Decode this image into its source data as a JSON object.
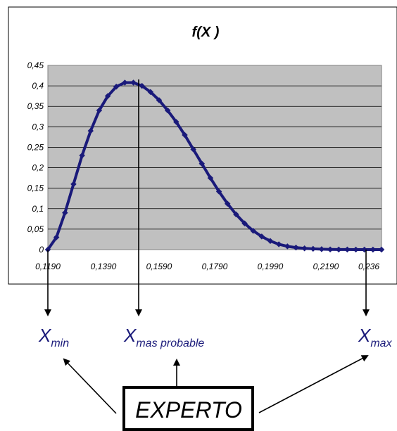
{
  "chart_data": {
    "type": "line",
    "title": "f(X  )",
    "y_ticks": [
      "0",
      "0,05",
      "0,1",
      "0,15",
      "0,2",
      "0,25",
      "0,3",
      "0,35",
      "0,4",
      "0,45"
    ],
    "x_ticks": [
      "0,1190",
      "0,1390",
      "0,1590",
      "0,1790",
      "0,1990",
      "0,2190",
      "0,236"
    ],
    "xlim": [
      0.119,
      0.236
    ],
    "ylim": [
      0,
      0.45
    ],
    "grid": true,
    "series": [
      {
        "color": "#1a1a7a",
        "x": [
          0.119,
          0.122,
          0.125,
          0.128,
          0.131,
          0.134,
          0.137,
          0.14,
          0.143,
          0.146,
          0.149,
          0.152,
          0.155,
          0.158,
          0.161,
          0.164,
          0.167,
          0.17,
          0.173,
          0.176,
          0.179,
          0.182,
          0.185,
          0.188,
          0.191,
          0.194,
          0.197,
          0.2,
          0.203,
          0.206,
          0.209,
          0.212,
          0.215,
          0.218,
          0.221,
          0.224,
          0.227,
          0.23,
          0.233,
          0.236
        ],
        "y": [
          0.0,
          0.03,
          0.09,
          0.16,
          0.23,
          0.29,
          0.34,
          0.375,
          0.398,
          0.408,
          0.408,
          0.4,
          0.385,
          0.365,
          0.34,
          0.312,
          0.28,
          0.245,
          0.21,
          0.175,
          0.142,
          0.112,
          0.086,
          0.064,
          0.046,
          0.032,
          0.021,
          0.013,
          0.008,
          0.005,
          0.003,
          0.002,
          0.001,
          0.0005,
          0.0003,
          0.0002,
          0.0001,
          0.0,
          0.0,
          0.0
        ]
      }
    ]
  },
  "annotations": {
    "x_min": {
      "main": "X",
      "sub": "min"
    },
    "x_mode": {
      "main": "X",
      "sub": "mas probable"
    },
    "x_max": {
      "main": "X",
      "sub": "max"
    },
    "expert_label": "EXPERTO"
  },
  "colors": {
    "plot_bg": "#c0c0c0",
    "curve": "#1a1a7a",
    "label_text": "#1a1a7a"
  }
}
